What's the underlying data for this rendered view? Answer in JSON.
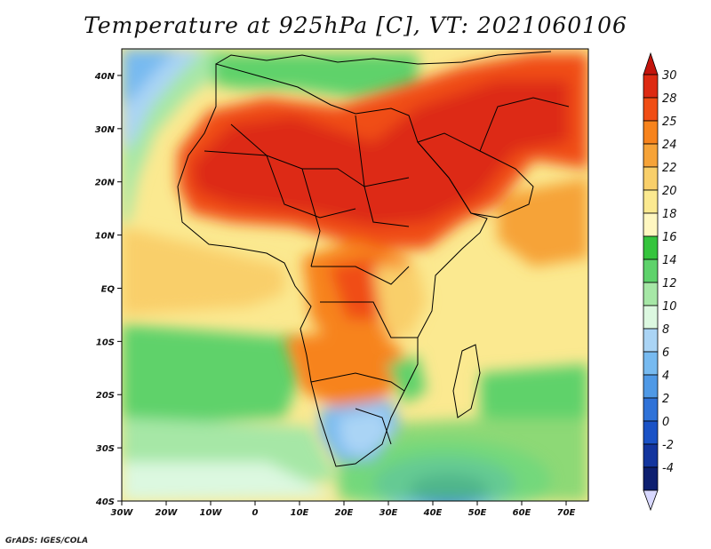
{
  "title": "Temperature at 925hPa [C], VT: 2021060106",
  "credit": "GrADS: IGES/COLA",
  "map": {
    "lon_labels": [
      "30W",
      "20W",
      "10W",
      "0",
      "10E",
      "20E",
      "30E",
      "40E",
      "50E",
      "60E",
      "70E"
    ],
    "lat_labels": [
      "40N",
      "30N",
      "20N",
      "10N",
      "EQ",
      "10S",
      "20S",
      "30S",
      "40S"
    ],
    "lon_range": [
      -30,
      75
    ],
    "lat_range": [
      -40,
      45
    ]
  },
  "colorbar": {
    "levels": [
      "30",
      "28",
      "25",
      "24",
      "22",
      "20",
      "18",
      "16",
      "14",
      "12",
      "10",
      "8",
      "6",
      "4",
      "2",
      "0",
      "-2",
      "-4"
    ],
    "colors": [
      "#dd2a12",
      "#f04d14",
      "#f7831c",
      "#f6a338",
      "#f9cf6a",
      "#fbe990",
      "#fff7c0",
      "#35c43d",
      "#5ed26b",
      "#a6e7a6",
      "#dcf8e0",
      "#aad4f5",
      "#77baf0",
      "#4f99e6",
      "#2f72d8",
      "#1a52c6",
      "#13359e",
      "#0d1f70"
    ],
    "top_arrow_color": "#c3140c",
    "bottom_arrow_color": "#d8d8ff"
  }
}
